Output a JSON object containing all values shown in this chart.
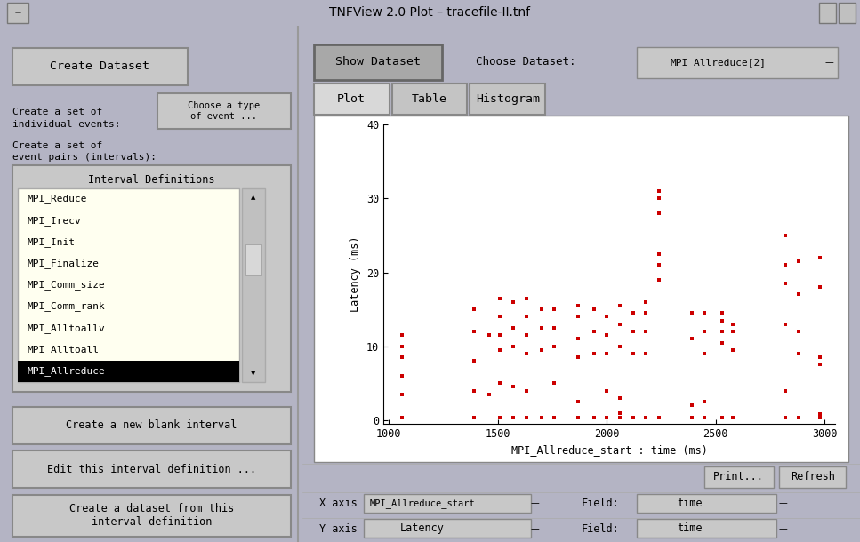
{
  "title": "TNFView 2.0 Plot – tracefile-II.tnf",
  "bg_color": "#c0c0c0",
  "window_bg": "#b4b4c4",
  "plot_bg": "#ffffff",
  "listbox_bg": "#fffff0",
  "button_color": "#c8c8c8",
  "dot_color": "#cc0000",
  "xlabel": "MPI_Allreduce_start : time (ms)",
  "ylabel": "Latency (ms)",
  "xlim": [
    975,
    3050
  ],
  "ylim": [
    -0.5,
    40
  ],
  "xticks": [
    1000,
    1500,
    2000,
    2500,
    3000
  ],
  "yticks": [
    0,
    10,
    20,
    30,
    40
  ],
  "interval_items": [
    "MPI_Reduce",
    "MPI_Irecv",
    "MPI_Init",
    "MPI_Finalize",
    "MPI_Comm_size",
    "MPI_Comm_rank",
    "MPI_Alltoallv",
    "MPI_Alltoall",
    "MPI_Allreduce"
  ],
  "selected_item": "MPI_Allreduce",
  "columns": [
    {
      "x": 1060,
      "y": [
        0.3,
        3.5,
        6,
        8.5,
        10,
        11.5
      ]
    },
    {
      "x": 1390,
      "y": [
        0.3,
        4,
        8,
        12,
        15
      ]
    },
    {
      "x": 1460,
      "y": [
        3.5,
        11.5
      ]
    },
    {
      "x": 1510,
      "y": [
        0.3,
        5,
        9.5,
        11.5,
        14,
        16.5
      ]
    },
    {
      "x": 1570,
      "y": [
        0.3,
        4.5,
        10,
        12.5,
        16
      ]
    },
    {
      "x": 1630,
      "y": [
        0.3,
        4,
        9,
        11.5,
        14,
        16.5
      ]
    },
    {
      "x": 1700,
      "y": [
        0.3,
        9.5,
        12.5,
        15
      ]
    },
    {
      "x": 1760,
      "y": [
        0.3,
        5,
        10,
        12.5,
        15
      ]
    },
    {
      "x": 1870,
      "y": [
        0.3,
        2.5,
        8.5,
        11,
        14,
        15.5
      ]
    },
    {
      "x": 1940,
      "y": [
        0.3,
        9,
        12,
        15
      ]
    },
    {
      "x": 2000,
      "y": [
        0.3,
        4,
        9,
        11.5,
        14
      ]
    },
    {
      "x": 2060,
      "y": [
        0.3,
        1,
        3,
        10,
        13,
        15.5
      ]
    },
    {
      "x": 2120,
      "y": [
        0.3,
        9,
        12,
        14.5
      ]
    },
    {
      "x": 2180,
      "y": [
        0.3,
        9,
        12,
        14.5,
        16
      ]
    },
    {
      "x": 2240,
      "y": [
        0.3,
        19,
        21,
        22.5,
        28,
        30,
        31
      ]
    },
    {
      "x": 2390,
      "y": [
        0.3,
        2,
        11,
        14.5
      ]
    },
    {
      "x": 2450,
      "y": [
        0.3,
        2.5,
        9,
        12,
        14.5
      ]
    },
    {
      "x": 2530,
      "y": [
        0.3,
        10.5,
        12,
        13.5,
        14.5
      ]
    },
    {
      "x": 2580,
      "y": [
        0.3,
        9.5,
        12,
        13
      ]
    },
    {
      "x": 2820,
      "y": [
        0.3,
        4,
        13,
        18.5,
        21,
        25
      ]
    },
    {
      "x": 2880,
      "y": [
        0.3,
        9,
        12,
        17,
        21.5
      ]
    },
    {
      "x": 2980,
      "y": [
        0.3,
        0.8,
        7.5,
        8.5,
        18,
        22
      ]
    }
  ]
}
